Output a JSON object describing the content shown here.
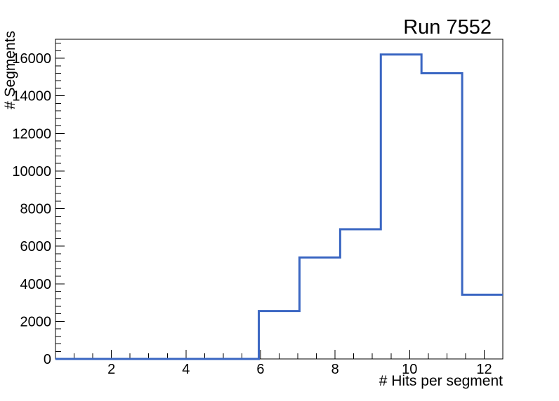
{
  "chart_data": {
    "type": "histogram",
    "title": "Run 7552",
    "xlabel": "# Hits per segment",
    "ylabel": "# Segments",
    "xlim": [
      0.5,
      12.5
    ],
    "ylim": [
      0,
      17010
    ],
    "bin_edges": [
      0.5,
      1.5909,
      2.6818,
      3.7727,
      4.8636,
      5.9545,
      7.0455,
      8.1364,
      9.2273,
      10.3182,
      11.4091,
      12.5
    ],
    "counts": [
      0,
      0,
      0,
      0,
      0,
      2550,
      5400,
      6900,
      16200,
      15200,
      3420
    ],
    "x_major_ticks": [
      2,
      4,
      6,
      8,
      10,
      12
    ],
    "x_minor_tick_step": 0.5,
    "y_major_ticks": [
      0,
      2000,
      4000,
      6000,
      8000,
      10000,
      12000,
      14000,
      16000
    ],
    "y_minor_tick_step": 400,
    "line_color": "#3a66c2",
    "axis_color": "#000000",
    "background_color": "#ffffff",
    "grid": false,
    "legend_position": "none"
  }
}
